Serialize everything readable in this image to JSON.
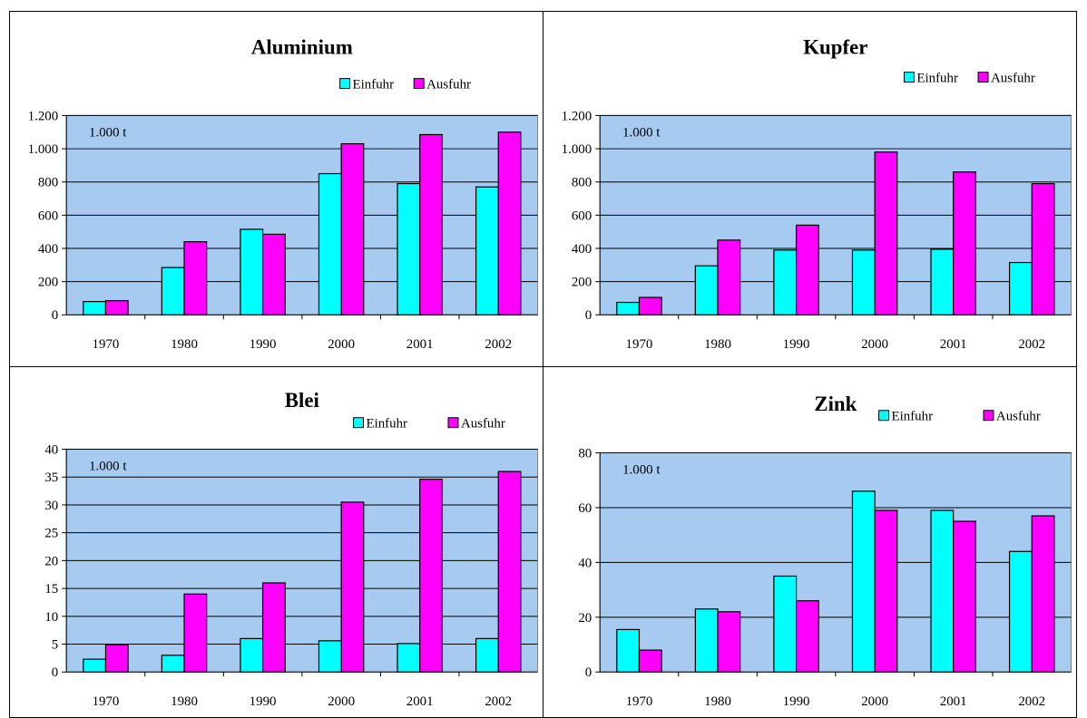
{
  "colors": {
    "einfuhr": "#00FFFF",
    "ausfuhr": "#FF00FF",
    "plot_area": "#A6CAF0"
  },
  "chart_data": [
    {
      "type": "bar",
      "title": "Aluminium",
      "unit_label": "1.000 t",
      "categories": [
        "1970",
        "1980",
        "1990",
        "2000",
        "2001",
        "2002"
      ],
      "series": [
        {
          "name": "Einfuhr",
          "values": [
            80,
            285,
            515,
            850,
            790,
            770
          ]
        },
        {
          "name": "Ausfuhr",
          "values": [
            85,
            440,
            485,
            1030,
            1085,
            1100
          ]
        }
      ],
      "ylim": [
        0,
        1200
      ],
      "yticks": [
        0,
        200,
        400,
        600,
        800,
        1000,
        1200
      ],
      "ytick_labels": [
        "0",
        "200",
        "400",
        "600",
        "800",
        "1.000",
        "1.200"
      ],
      "grid": true,
      "legend": "top-right"
    },
    {
      "type": "bar",
      "title": "Kupfer",
      "unit_label": "1.000 t",
      "categories": [
        "1970",
        "1980",
        "1990",
        "2000",
        "2001",
        "2002"
      ],
      "series": [
        {
          "name": "Einfuhr",
          "values": [
            75,
            295,
            390,
            390,
            395,
            315
          ]
        },
        {
          "name": "Ausfuhr",
          "values": [
            105,
            450,
            540,
            980,
            860,
            790
          ]
        }
      ],
      "ylim": [
        0,
        1200
      ],
      "yticks": [
        0,
        200,
        400,
        600,
        800,
        1000,
        1200
      ],
      "ytick_labels": [
        "0",
        "200",
        "400",
        "600",
        "800",
        "1.000",
        "1.200"
      ],
      "grid": true,
      "legend": "top-right"
    },
    {
      "type": "bar",
      "title": "Blei",
      "unit_label": "1.000 t",
      "categories": [
        "1970",
        "1980",
        "1990",
        "2000",
        "2001",
        "2002"
      ],
      "series": [
        {
          "name": "Einfuhr",
          "values": [
            2.3,
            3,
            6,
            5.6,
            5.1,
            6
          ]
        },
        {
          "name": "Ausfuhr",
          "values": [
            4.9,
            14,
            16,
            30.5,
            34.6,
            36
          ]
        }
      ],
      "ylim": [
        0,
        40
      ],
      "yticks": [
        0,
        5,
        10,
        15,
        20,
        25,
        30,
        35,
        40
      ],
      "ytick_labels": [
        "0",
        "5",
        "10",
        "15",
        "20",
        "25",
        "30",
        "35",
        "40"
      ],
      "grid": true,
      "legend": "top-right"
    },
    {
      "type": "bar",
      "title": "Zink",
      "unit_label": "1.000 t",
      "categories": [
        "1970",
        "1980",
        "1990",
        "2000",
        "2001",
        "2002"
      ],
      "series": [
        {
          "name": "Einfuhr",
          "values": [
            15.5,
            23,
            35,
            66,
            59,
            44
          ]
        },
        {
          "name": "Ausfuhr",
          "values": [
            8,
            22,
            26,
            59,
            55,
            57
          ]
        }
      ],
      "ylim": [
        0,
        80
      ],
      "yticks": [
        0,
        20,
        40,
        60,
        80
      ],
      "ytick_labels": [
        "0",
        "20",
        "40",
        "60",
        "80"
      ],
      "grid": true,
      "legend": "top-right"
    }
  ]
}
